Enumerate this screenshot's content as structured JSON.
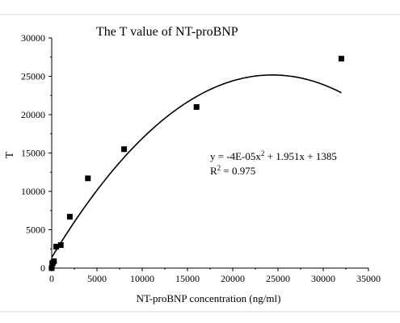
{
  "chart_data": {
    "type": "scatter",
    "title": "The T value of  NT-proBNP",
    "xlabel": "NT-proBNP concentration (ng/ml)",
    "ylabel": "T",
    "xlim": [
      0,
      35000
    ],
    "ylim": [
      0,
      30000
    ],
    "xticks": [
      0,
      5000,
      10000,
      15000,
      20000,
      25000,
      30000,
      35000
    ],
    "yticks": [
      0,
      5000,
      10000,
      15000,
      20000,
      25000,
      30000
    ],
    "xtick_labels": [
      "0",
      "5000",
      "10000",
      "15000",
      "20000",
      "25000",
      "30000",
      "35000"
    ],
    "ytick_labels": [
      "0",
      "5000",
      "10000",
      "15000",
      "20000",
      "25000",
      "30000"
    ],
    "points": {
      "x": [
        0,
        62.5,
        125,
        250,
        500,
        1000,
        2000,
        4000,
        8000,
        16000,
        32000
      ],
      "y": [
        0,
        600,
        700,
        900,
        2800,
        3000,
        6700,
        11700,
        15500,
        21000,
        27300
      ]
    },
    "fit": {
      "a": -4e-05,
      "b": 1.951,
      "c": 1385,
      "x_range": [
        0,
        32000
      ]
    },
    "annotations": {
      "equation": {
        "prefix": "y = -4E-05x",
        "sup": "2",
        "suffix": " + 1.951x + 1385"
      },
      "r2": {
        "prefix": "R",
        "sup": "2",
        "suffix": " = 0.975"
      }
    },
    "grid": false,
    "legend": false
  }
}
